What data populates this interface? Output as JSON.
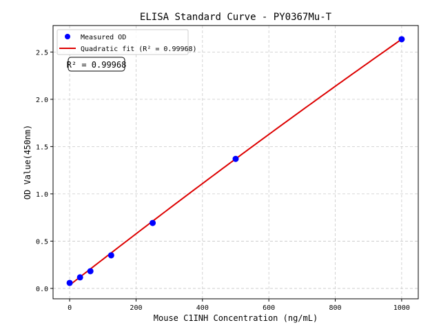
{
  "chart_data": {
    "type": "scatter",
    "title": "ELISA Standard Curve - PY0367Mu-T",
    "xlabel": "Mouse C1INH Concentration (ng/mL)",
    "ylabel": "OD Value(450nm)",
    "xlim": [
      -50,
      1050
    ],
    "ylim": [
      -0.11,
      2.78
    ],
    "xticks": [
      0,
      200,
      400,
      600,
      800,
      1000
    ],
    "yticks": [
      0.0,
      0.5,
      1.0,
      1.5,
      2.0,
      2.5
    ],
    "xtick_labels": [
      "0",
      "200",
      "400",
      "600",
      "800",
      "1000"
    ],
    "ytick_labels": [
      "0.0",
      "0.5",
      "1.0",
      "1.5",
      "2.0",
      "2.5"
    ],
    "grid": true,
    "legend_placement": "top-left",
    "series": [
      {
        "name": "Measured OD",
        "kind": "scatter",
        "color": "#0000ff",
        "x": [
          0,
          31.25,
          62.5,
          125,
          250,
          500,
          1000
        ],
        "y": [
          0.058,
          0.117,
          0.182,
          0.35,
          0.692,
          1.37,
          2.635
        ]
      },
      {
        "name": "Quadratic fit (R² = 0.99968)",
        "kind": "line",
        "color": "#dd0000",
        "coefficients": {
          "a": -1.4e-07,
          "b": 0.00274,
          "c": 0.035
        },
        "x_range": [
          0,
          1000
        ]
      }
    ],
    "annotation": "R² = 0.99968"
  }
}
